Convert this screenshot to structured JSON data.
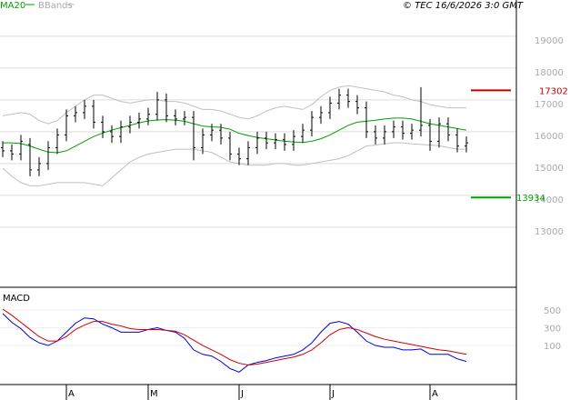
{
  "chart_data": [
    {
      "type": "ohlc",
      "annotation": "© TEC 16/6/2026 3:0 GMT",
      "open": [
        15500,
        15400,
        15300,
        15600,
        14800,
        15000,
        15500,
        15900,
        16500,
        16600,
        16800,
        16300,
        16000,
        15850,
        16150,
        16300,
        16400,
        16550,
        17000,
        16500,
        16400,
        16450,
        15500,
        15900,
        16050,
        15800,
        15300,
        15150,
        15500,
        15800,
        15650,
        15750,
        15600,
        15850,
        16050,
        16450,
        16600,
        16900,
        17150,
        16950,
        16750,
        16000,
        15800,
        16000,
        16150,
        15950,
        16050,
        16200,
        15700,
        16250,
        15900,
        15550
      ],
      "high": [
        15700,
        15600,
        15900,
        15800,
        15200,
        15700,
        16100,
        16700,
        16800,
        17000,
        17000,
        16500,
        16200,
        16350,
        16500,
        16600,
        16750,
        17250,
        17200,
        16700,
        16650,
        16650,
        16100,
        16250,
        16250,
        16000,
        15500,
        15700,
        16000,
        16000,
        15950,
        15950,
        16050,
        16250,
        16650,
        16800,
        17100,
        17350,
        17350,
        17150,
        16950,
        16200,
        16200,
        16350,
        16350,
        16250,
        17400,
        16400,
        16450,
        16450,
        16100,
        15850
      ],
      "low": [
        15200,
        15100,
        15100,
        14600,
        14600,
        14800,
        15300,
        15700,
        16300,
        16400,
        16100,
        15800,
        15650,
        15650,
        15950,
        16100,
        16200,
        16350,
        16300,
        16200,
        16200,
        15100,
        15300,
        15700,
        15600,
        15100,
        14950,
        14950,
        15300,
        15450,
        15450,
        15400,
        15400,
        15650,
        15850,
        16250,
        16400,
        16700,
        16750,
        16550,
        15800,
        15600,
        15600,
        15800,
        15750,
        15750,
        15850,
        15400,
        15500,
        15700,
        15350,
        15350
      ],
      "close": [
        15400,
        15300,
        15700,
        14800,
        15000,
        15500,
        15900,
        16500,
        16600,
        16800,
        16300,
        16000,
        15850,
        16150,
        16300,
        16400,
        16550,
        17000,
        16500,
        16400,
        16450,
        15500,
        15900,
        16050,
        15800,
        15300,
        15150,
        15500,
        15800,
        15650,
        15750,
        15600,
        15850,
        16050,
        16450,
        16600,
        16900,
        17150,
        16950,
        16750,
        16000,
        15800,
        16000,
        16150,
        15950,
        16050,
        16200,
        15700,
        16250,
        15900,
        15550,
        15650
      ],
      "color": "#000000",
      "series": [
        {
          "name": "MA20",
          "color": "#00a000",
          "values": [
            15650,
            15650,
            15630,
            15550,
            15450,
            15360,
            15340,
            15400,
            15550,
            15700,
            15850,
            15960,
            16050,
            16130,
            16200,
            16280,
            16340,
            16370,
            16380,
            16360,
            16330,
            16250,
            16180,
            16150,
            16140,
            16080,
            15950,
            15880,
            15820,
            15780,
            15740,
            15700,
            15680,
            15660,
            15700,
            15780,
            15900,
            16050,
            16200,
            16300,
            16330,
            16360,
            16400,
            16430,
            16430,
            16400,
            16330,
            16250,
            16200,
            16150,
            16100,
            16050
          ]
        },
        {
          "name": "BBands",
          "color": "#c0c0c0",
          "upper": [
            16500,
            16550,
            16600,
            16550,
            16350,
            16250,
            16350,
            16600,
            16800,
            17000,
            17150,
            17150,
            17050,
            16950,
            16900,
            16950,
            17000,
            17000,
            16950,
            16950,
            16900,
            16800,
            16700,
            16700,
            16650,
            16550,
            16450,
            16400,
            16500,
            16650,
            16750,
            16800,
            16750,
            16700,
            16850,
            17100,
            17300,
            17400,
            17450,
            17400,
            17350,
            17300,
            17250,
            17150,
            17100,
            17000,
            16950,
            16850,
            16800,
            16750,
            16750,
            16750
          ],
          "lower": [
            14850,
            14600,
            14400,
            14300,
            14300,
            14350,
            14400,
            14400,
            14400,
            14400,
            14350,
            14300,
            14550,
            14800,
            15050,
            15200,
            15300,
            15350,
            15400,
            15450,
            15450,
            15450,
            15400,
            15350,
            15200,
            15050,
            15000,
            14950,
            14950,
            14950,
            15000,
            15000,
            14950,
            14950,
            15000,
            15050,
            15100,
            15150,
            15250,
            15400,
            15550,
            15580,
            15620,
            15650,
            15650,
            15620,
            15600,
            15580,
            15560,
            15500,
            15450,
            15450
          ]
        }
      ],
      "levels": [
        {
          "value": 17302,
          "color": "#c00000"
        },
        {
          "value": 13934,
          "color": "#00a000"
        }
      ],
      "ylim": [
        11140,
        20140
      ],
      "yticks": [
        13000,
        14000,
        15000,
        16000,
        17000,
        18000,
        19000
      ],
      "grid": true
    },
    {
      "type": "line",
      "title": "MACD",
      "categories": [
        null,
        null,
        null,
        null,
        null,
        null,
        null,
        "A",
        null,
        null,
        null,
        null,
        null,
        null,
        null,
        null,
        "M",
        null,
        null,
        null,
        null,
        null,
        null,
        null,
        null,
        null,
        "J",
        null,
        null,
        null,
        null,
        null,
        null,
        null,
        null,
        null,
        "J",
        null,
        null,
        null,
        null,
        null,
        null,
        null,
        null,
        null,
        null,
        "A",
        null,
        null,
        null,
        null
      ],
      "series": [
        {
          "color": "#0000e0",
          "values": [
            460,
            360,
            290,
            190,
            130,
            100,
            150,
            250,
            350,
            410,
            400,
            340,
            300,
            250,
            250,
            250,
            280,
            300,
            270,
            250,
            180,
            50,
            0,
            -20,
            -80,
            -160,
            -200,
            -120,
            -90,
            -70,
            -40,
            -20,
            0,
            50,
            130,
            250,
            350,
            370,
            340,
            250,
            150,
            100,
            80,
            80,
            50,
            50,
            60,
            0,
            0,
            0,
            -50,
            -80
          ]
        },
        {
          "color": "#d00000",
          "values": [
            510,
            440,
            360,
            280,
            200,
            150,
            150,
            200,
            280,
            330,
            370,
            370,
            340,
            320,
            290,
            280,
            280,
            280,
            270,
            260,
            220,
            160,
            100,
            50,
            0,
            -60,
            -100,
            -120,
            -110,
            -90,
            -70,
            -50,
            -30,
            0,
            50,
            130,
            220,
            280,
            300,
            280,
            240,
            200,
            170,
            150,
            130,
            110,
            90,
            70,
            50,
            40,
            20,
            0
          ]
        }
      ],
      "ylim": [
        -340,
        735
      ],
      "yticks": [
        100,
        300,
        500
      ],
      "grid": true
    }
  ]
}
